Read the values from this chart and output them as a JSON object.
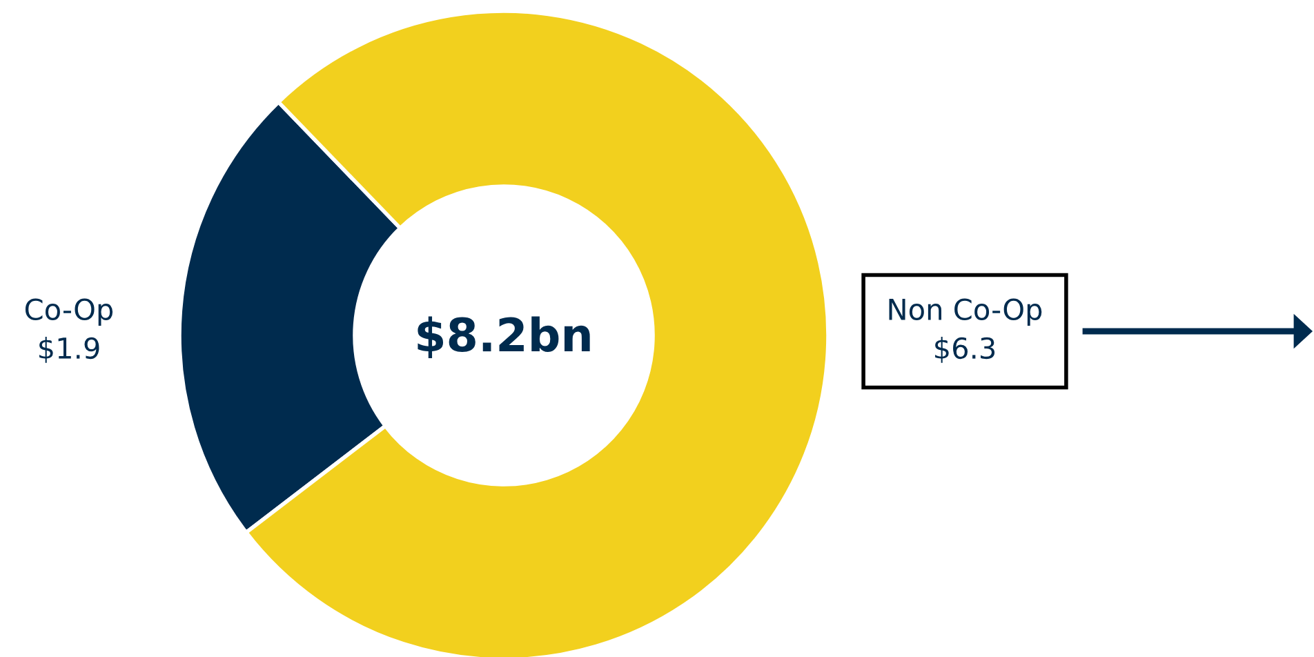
{
  "chart_data": {
    "type": "donut",
    "categories": [
      "Co-Op",
      "Non Co-Op"
    ],
    "values": [
      1.9,
      6.3
    ],
    "colors": [
      "#002b4e",
      "#f2d01e"
    ],
    "value_labels": [
      "$1.9",
      "$6.3"
    ],
    "annotations": [
      "$8.2bn"
    ],
    "legend": false
  }
}
